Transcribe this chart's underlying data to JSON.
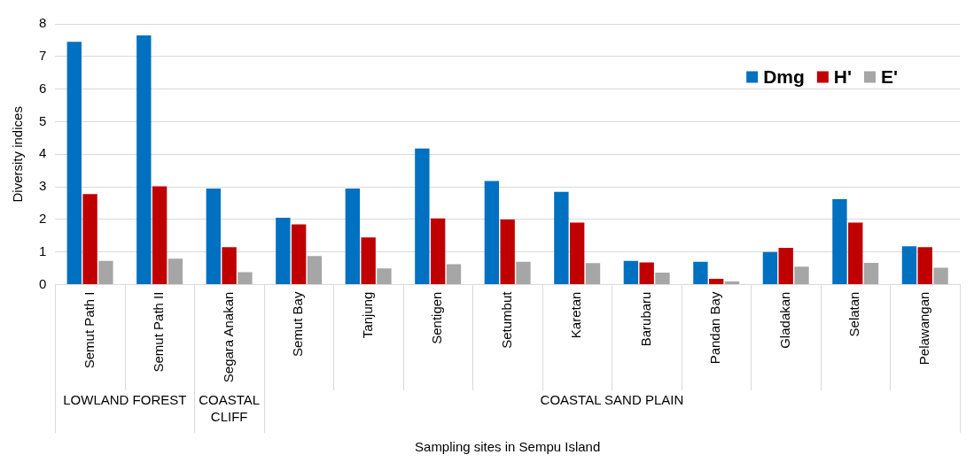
{
  "chart_data": {
    "type": "bar",
    "xlabel": "Sampling sites in Sempu Island",
    "ylabel": "Diversity indices",
    "categories": [
      "Semut Path I",
      "Semut Path II",
      "Segara Anakan",
      "Semut Bay",
      "Tanjung",
      "Sentigen",
      "Setumbut",
      "Karetan",
      "Barubaru",
      "Pandan Bay",
      "Gladakan",
      "Selatan",
      "Pelawangan"
    ],
    "series": [
      {
        "name": "Dmg",
        "color": "#0070c0",
        "values": [
          7.45,
          7.65,
          2.95,
          2.05,
          2.95,
          4.18,
          3.18,
          2.85,
          0.73,
          0.7,
          1.0,
          2.62,
          1.18
        ]
      },
      {
        "name": "H'",
        "color": "#c00000",
        "values": [
          2.78,
          3.02,
          1.15,
          1.85,
          1.45,
          2.03,
          2.0,
          1.9,
          0.68,
          0.18,
          1.13,
          1.9,
          1.15
        ]
      },
      {
        "name": "E'",
        "color": "#a6a6a6",
        "values": [
          0.73,
          0.8,
          0.38,
          0.88,
          0.5,
          0.63,
          0.7,
          0.66,
          0.37,
          0.1,
          0.55,
          0.67,
          0.52
        ]
      }
    ],
    "ylim": [
      0,
      8
    ],
    "yticks": [
      0,
      1,
      2,
      3,
      4,
      5,
      6,
      7,
      8
    ],
    "grid": "y",
    "legend": "top right",
    "annotations": [
      "LOWLAND FOREST",
      "COASTAL CLIFF",
      "COASTAL SAND PLAIN"
    ]
  }
}
